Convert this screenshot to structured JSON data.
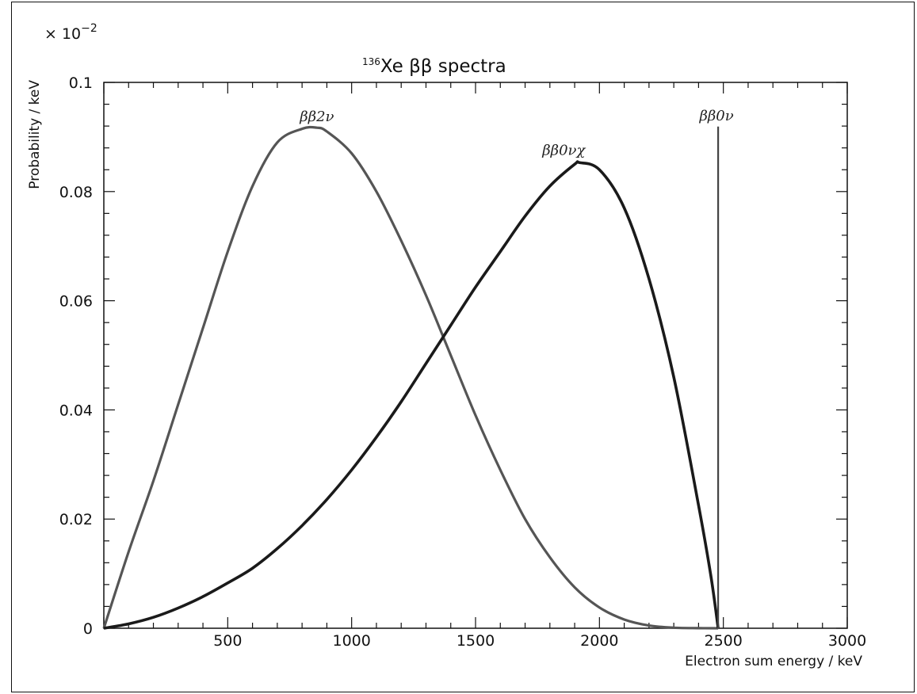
{
  "chart_data": {
    "type": "line",
    "title": {
      "isotope_superscript": "136",
      "text": "Xe ββ spectra"
    },
    "xlabel": "Electron sum energy / keV",
    "ylabel": "Probability / keV",
    "y_multiplier": {
      "base": "× 10",
      "exponent": "−2"
    },
    "xlim": [
      0,
      3000
    ],
    "ylim": [
      0,
      0.1
    ],
    "x_tick_values": [
      500,
      1000,
      1500,
      2000,
      2500,
      3000
    ],
    "x_tick_labels": [
      "500",
      "1000",
      "1500",
      "2000",
      "2500",
      "3000"
    ],
    "y_tick_values": [
      0,
      0.02,
      0.04,
      0.06,
      0.08,
      0.1
    ],
    "y_tick_labels": [
      "0",
      "0.02",
      "0.04",
      "0.06",
      "0.08",
      "0.1"
    ],
    "grid": false,
    "series": [
      {
        "name": "ββ2ν",
        "color": "#555555",
        "x": [
          0,
          100,
          200,
          300,
          400,
          500,
          600,
          700,
          800,
          860,
          900,
          1000,
          1100,
          1200,
          1300,
          1400,
          1500,
          1600,
          1700,
          1800,
          1900,
          2000,
          2100,
          2200,
          2300,
          2400,
          2479
        ],
        "y": [
          0,
          0.014,
          0.027,
          0.041,
          0.055,
          0.069,
          0.081,
          0.089,
          0.0915,
          0.0917,
          0.091,
          0.087,
          0.08,
          0.071,
          0.061,
          0.05,
          0.039,
          0.029,
          0.02,
          0.013,
          0.0075,
          0.0038,
          0.0016,
          0.0005,
          0.0001,
          2e-05,
          0
        ]
      },
      {
        "name": "ββ0νχ",
        "color": "#1a1a1a",
        "x": [
          0,
          100,
          200,
          300,
          400,
          500,
          600,
          700,
          800,
          900,
          1000,
          1100,
          1200,
          1300,
          1400,
          1500,
          1600,
          1700,
          1800,
          1900,
          1920,
          2000,
          2100,
          2200,
          2300,
          2400,
          2450,
          2479
        ],
        "y": [
          0,
          0.0008,
          0.002,
          0.0037,
          0.0058,
          0.0083,
          0.011,
          0.0146,
          0.0188,
          0.0236,
          0.029,
          0.035,
          0.0415,
          0.0485,
          0.0555,
          0.0625,
          0.069,
          0.0755,
          0.081,
          0.085,
          0.0853,
          0.084,
          0.077,
          0.064,
          0.046,
          0.0225,
          0.0095,
          0
        ]
      },
      {
        "name": "ββ0ν",
        "color": "#444444",
        "x": [
          2479,
          2479
        ],
        "y": [
          0,
          0.0919
        ]
      }
    ]
  }
}
